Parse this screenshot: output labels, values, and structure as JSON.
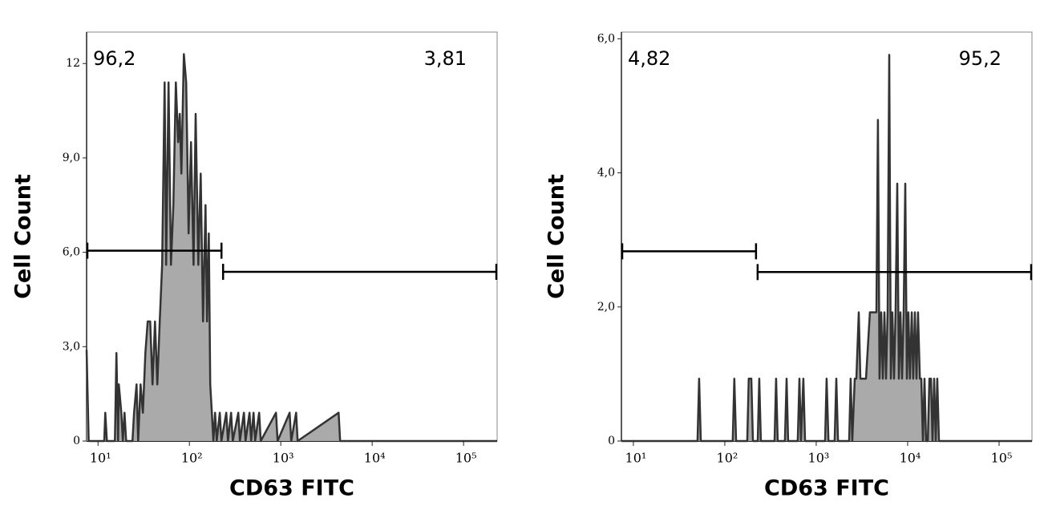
{
  "chart_data": [
    {
      "type": "area",
      "xscale": "log",
      "xlabel": "CD63 FITC",
      "ylabel": "Cell Count",
      "color": "#333333",
      "fill": "#aaaaaa",
      "xlim": [
        7.5,
        233000
      ],
      "ylim": [
        0,
        13
      ],
      "xticks": [
        {
          "value": 10,
          "label": "10¹"
        },
        {
          "value": 100,
          "label": "10²"
        },
        {
          "value": 1000,
          "label": "10³"
        },
        {
          "value": 10000,
          "label": "10⁴"
        },
        {
          "value": 100000,
          "label": "10⁵"
        }
      ],
      "yticks": [
        0,
        {
          "value": 3,
          "label": "3,0"
        },
        {
          "value": 6,
          "label": "6,0"
        },
        {
          "value": 9,
          "label": "9,0"
        },
        12
      ],
      "gates": [
        {
          "label": "96,2",
          "xmin": 7.5,
          "xmax": 229,
          "y": 6.05
        },
        {
          "label": "3,81",
          "xmin": 229,
          "xmax": 233000,
          "y": 5.38
        }
      ],
      "x": [
        7.5,
        7.9,
        11.7,
        12.0,
        12.5,
        15.3,
        15.9,
        16.6,
        16.9,
        18.0,
        18.7,
        19.5,
        20.3,
        23.8,
        24.8,
        26.4,
        27.5,
        29.2,
        31.0,
        33.0,
        35.0,
        37.2,
        39.5,
        42.0,
        44.6,
        47.3,
        50.3,
        53.5,
        55.7,
        59.1,
        62.8,
        66.8,
        71.0,
        75.4,
        78.5,
        81.7,
        86.9,
        92.2,
        98,
        104,
        111,
        117,
        125,
        133,
        141,
        150,
        156,
        163,
        169,
        176,
        183,
        191,
        199,
        215,
        224,
        253,
        264,
        286,
        298,
        343,
        357,
        395,
        411,
        455,
        474,
        503,
        524,
        580,
        604,
        886,
        923,
        1250,
        1300,
        1470,
        1530,
        4290,
        4460,
        233000
      ],
      "values": [
        2.9,
        0,
        0,
        0.9,
        0,
        0,
        2.8,
        0,
        1.8,
        0.9,
        0,
        0.9,
        0,
        0,
        0.9,
        1.8,
        0,
        1.8,
        0.9,
        2.8,
        3.8,
        3.8,
        1.8,
        3.8,
        1.8,
        3.8,
        5.6,
        11.4,
        5.6,
        11.4,
        5.6,
        7.5,
        11.4,
        9.5,
        10.4,
        8.5,
        12.3,
        11.4,
        6.6,
        9.5,
        5.6,
        10.4,
        5.6,
        8.5,
        3.8,
        7.5,
        3.8,
        6.6,
        1.8,
        0.9,
        0,
        0.9,
        0,
        0.9,
        0,
        0.9,
        0,
        0.9,
        0,
        0.9,
        0,
        0.9,
        0,
        0.9,
        0,
        0.9,
        0,
        0.9,
        0,
        0.9,
        0,
        0.9,
        0,
        0.9,
        0,
        0.9,
        0,
        0
      ]
    },
    {
      "type": "area",
      "xscale": "log",
      "xlabel": "CD63 FITC",
      "ylabel": "Cell Count",
      "color": "#333333",
      "fill": "#aaaaaa",
      "xlim": [
        7.4,
        229000
      ],
      "ylim": [
        0,
        6.1
      ],
      "xticks": [
        {
          "value": 10,
          "label": "10¹"
        },
        {
          "value": 100,
          "label": "10²"
        },
        {
          "value": 1000,
          "label": "10³"
        },
        {
          "value": 10000,
          "label": "10⁴"
        },
        {
          "value": 100000,
          "label": "10⁵"
        }
      ],
      "yticks": [
        0,
        {
          "value": 2,
          "label": "2,0"
        },
        {
          "value": 4,
          "label": "4,0"
        },
        {
          "value": 6,
          "label": "6,0"
        }
      ],
      "gates": [
        {
          "label": "4,82",
          "xmin": 7.4,
          "xmax": 224,
          "y": 2.83
        },
        {
          "label": "95,2",
          "xmin": 224,
          "xmax": 229000,
          "y": 2.52
        }
      ],
      "x": [
        7.4,
        50.3,
        52.4,
        54.6,
        122,
        127,
        133,
        176,
        183,
        195,
        203,
        229,
        238,
        248,
        350,
        364,
        379,
        455,
        474,
        493,
        628,
        655,
        681,
        724,
        754,
        1250,
        1300,
        1360,
        1590,
        1660,
        1730,
        2290,
        2380,
        2480,
        2640,
        2750,
        2920,
        3040,
        3360,
        3500,
        3870,
        4550,
        4730,
        4930,
        5140,
        5350,
        5570,
        5800,
        6040,
        6290,
        6550,
        6810,
        7100,
        7380,
        7690,
        8010,
        8340,
        8690,
        9040,
        9420,
        9800,
        10200,
        10600,
        11100,
        11500,
        12000,
        12500,
        13000,
        13600,
        14100,
        14700,
        15300,
        15900,
        16600,
        17300,
        18000,
        18700,
        19500,
        20300,
        21100,
        22000,
        229000
      ],
      "values": [
        0,
        0,
        0.93,
        0,
        0,
        0.93,
        0,
        0,
        0.93,
        0.93,
        0,
        0,
        0.93,
        0,
        0,
        0.93,
        0,
        0,
        0.93,
        0,
        0,
        0.93,
        0,
        0.93,
        0,
        0,
        0.93,
        0,
        0,
        0.93,
        0,
        0,
        0.93,
        0,
        0.93,
        0.93,
        1.92,
        0.93,
        0.93,
        0.93,
        1.92,
        1.92,
        4.79,
        0.93,
        1.92,
        0.93,
        1.92,
        0.93,
        1.92,
        5.76,
        0.93,
        1.92,
        0.93,
        1.92,
        3.84,
        0.93,
        1.92,
        0.93,
        1.92,
        3.84,
        0.93,
        1.92,
        0.93,
        1.92,
        0.93,
        1.92,
        0.93,
        1.92,
        0.93,
        0.93,
        0,
        0.93,
        0,
        0,
        0.93,
        0.93,
        0,
        0.93,
        0,
        0.93,
        0,
        0
      ]
    }
  ]
}
